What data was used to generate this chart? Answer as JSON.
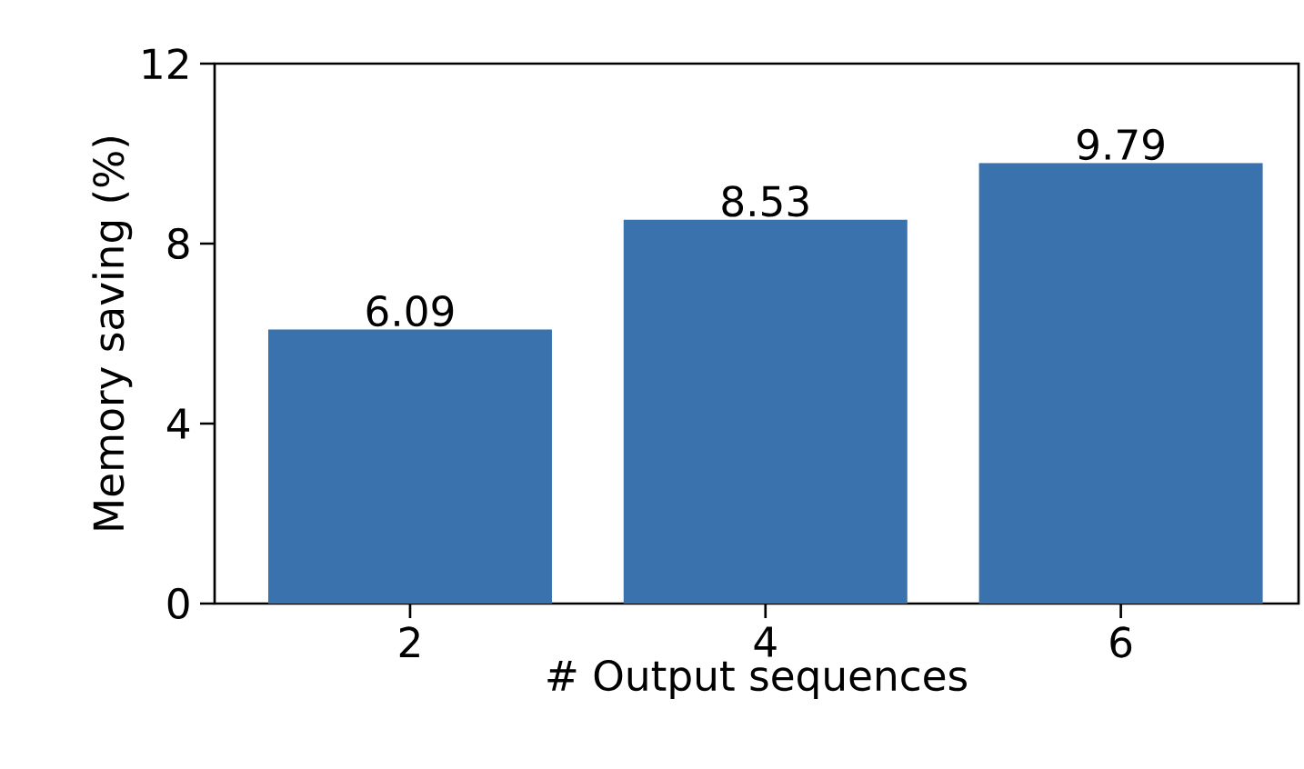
{
  "chart_data": {
    "type": "bar",
    "xlabel": "# Output sequences",
    "ylabel": "Memory saving (%)",
    "categories": [
      "2",
      "4",
      "6"
    ],
    "values": [
      6.09,
      8.53,
      9.79
    ],
    "color": "#3a72ae",
    "ylim": [
      0,
      12
    ],
    "yticks": [
      0,
      4,
      8,
      12
    ],
    "data_labels": true,
    "grid": false
  }
}
